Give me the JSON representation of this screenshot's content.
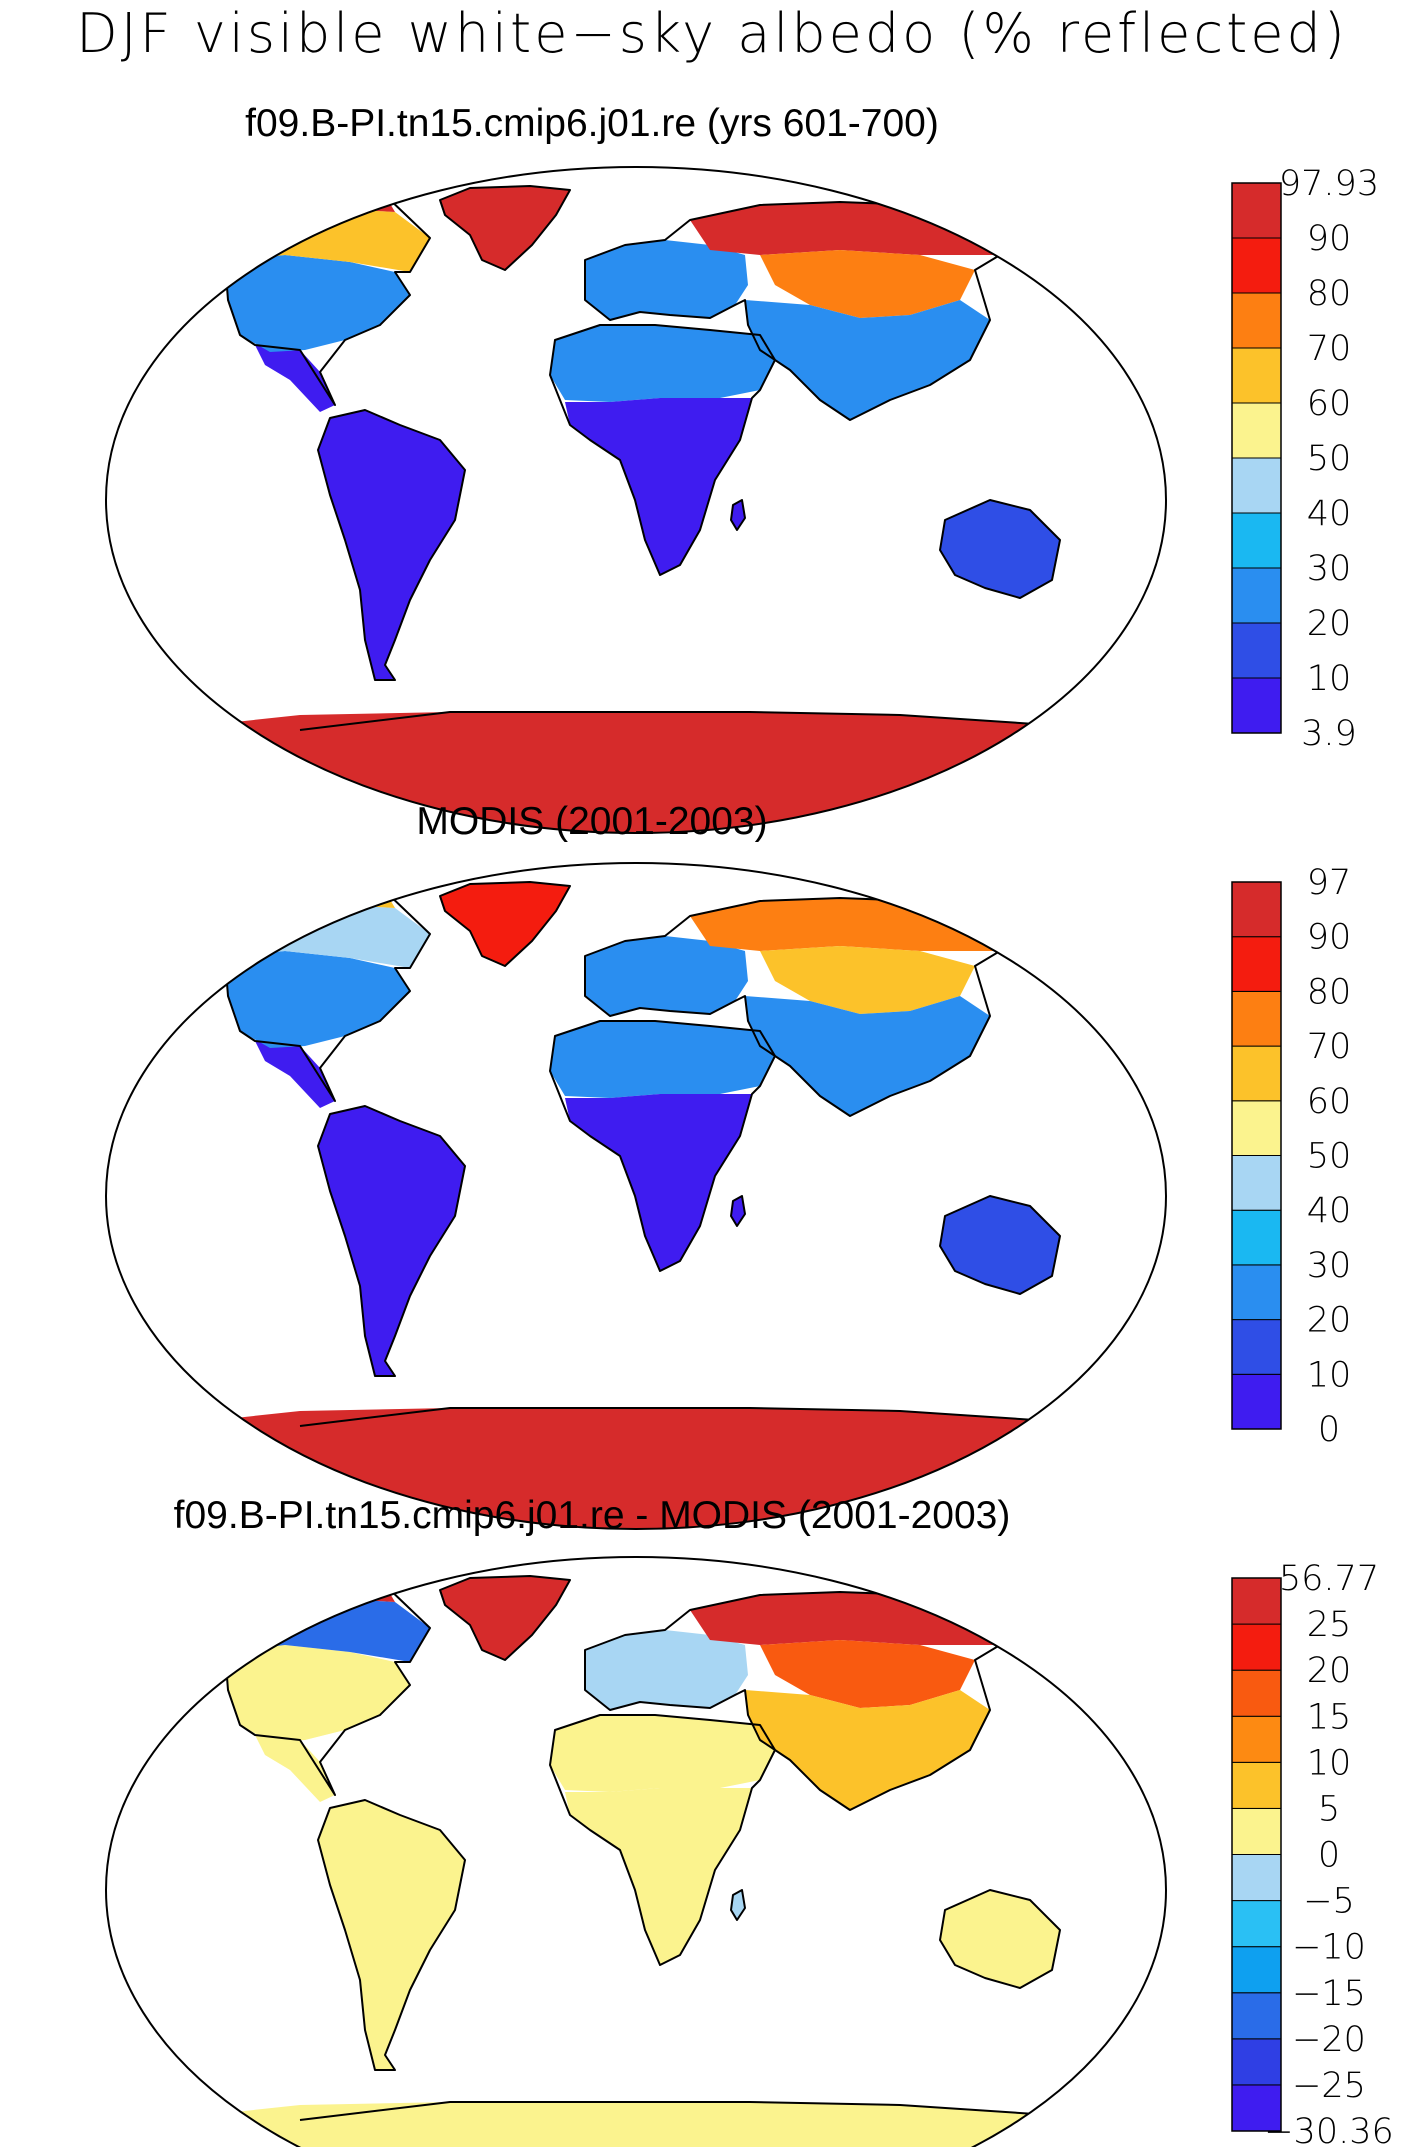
{
  "figure": {
    "title": "DJF visible white−sky albedo (% reflected)"
  },
  "panels": [
    {
      "title": "f09.B-PI.tn15.cmip6.j01.re (yrs 601-700)",
      "colorbar": {
        "labels": [
          "3.9",
          "10",
          "20",
          "30",
          "40",
          "50",
          "60",
          "70",
          "80",
          "90",
          "97.93"
        ],
        "colors": [
          "#3f1cf0",
          "#2f4ee6",
          "#2a8ef0",
          "#1ab8f2",
          "#a8d6f3",
          "#fbf38e",
          "#fcc22a",
          "#fd7f12",
          "#f41c0f",
          "#d62b2b"
        ]
      },
      "regions": {
        "north_america_arctic": "#d62b2b",
        "greenland": "#d62b2b",
        "canada": "#fcc22a",
        "usa": "#2a8ef0",
        "mexico": "#3f1cf0",
        "south_america": "#3f1cf0",
        "europe": "#2a8ef0",
        "siberia": "#d62b2b",
        "central_asia": "#fd7f12",
        "asia": "#2a8ef0",
        "sahara": "#2a8ef0",
        "africa": "#3f1cf0",
        "madagascar": "#3f1cf0",
        "australia": "#2f4ee6",
        "antarctica": "#d62b2b"
      }
    },
    {
      "title": "MODIS (2001-2003)",
      "colorbar": {
        "labels": [
          "0",
          "10",
          "20",
          "30",
          "40",
          "50",
          "60",
          "70",
          "80",
          "90",
          "97"
        ],
        "colors": [
          "#3f1cf0",
          "#2f4ee6",
          "#2a8ef0",
          "#1ab8f2",
          "#a8d6f3",
          "#fbf38e",
          "#fcc22a",
          "#fd7f12",
          "#f41c0f",
          "#d62b2b"
        ]
      },
      "regions": {
        "north_america_arctic": "#fcc22a",
        "greenland": "#f41c0f",
        "canada": "#a8d6f3",
        "usa": "#2a8ef0",
        "mexico": "#3f1cf0",
        "south_america": "#3f1cf0",
        "europe": "#2a8ef0",
        "siberia": "#fd7f12",
        "central_asia": "#fcc22a",
        "asia": "#2a8ef0",
        "sahara": "#2a8ef0",
        "africa": "#3f1cf0",
        "madagascar": "#3f1cf0",
        "australia": "#2f4ee6",
        "antarctica": "#d62b2b"
      }
    },
    {
      "title": "f09.B-PI.tn15.cmip6.j01.re - MODIS (2001-2003)",
      "colorbar": {
        "labels": [
          "−30.36",
          "−25",
          "−20",
          "−15",
          "−10",
          "−5",
          "0",
          "5",
          "10",
          "15",
          "20",
          "25",
          "56.77"
        ],
        "colors": [
          "#3f1cf0",
          "#2f3fe4",
          "#2a6ce8",
          "#0ea0f0",
          "#2ac0f4",
          "#a8d6f3",
          "#fbf38e",
          "#fcc22a",
          "#fd8a12",
          "#f95a10",
          "#f41c0f",
          "#d62b2b"
        ]
      },
      "regions": {
        "north_america_arctic": "#d62b2b",
        "greenland": "#d62b2b",
        "canada": "#2a6ce8",
        "usa": "#fbf38e",
        "mexico": "#fbf38e",
        "south_america": "#fbf38e",
        "europe": "#a8d6f3",
        "siberia": "#d62b2b",
        "central_asia": "#f95a10",
        "asia": "#fcc22a",
        "sahara": "#fbf38e",
        "africa": "#fbf38e",
        "madagascar": "#a8d6f3",
        "australia": "#fbf38e",
        "antarctica": "#fbf38e"
      }
    }
  ]
}
